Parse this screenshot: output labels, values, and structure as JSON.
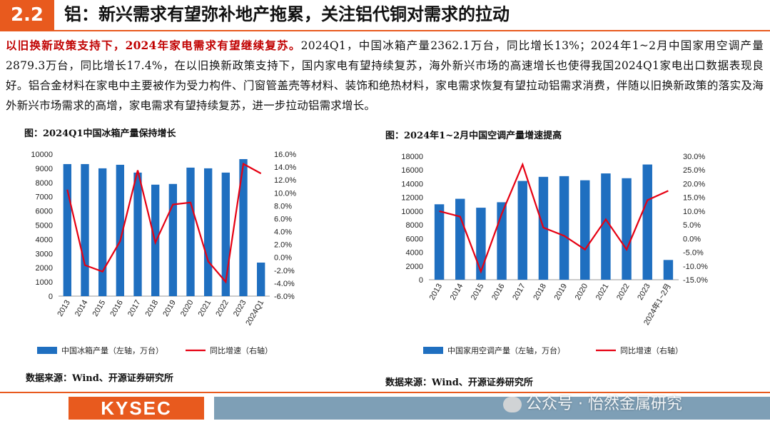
{
  "header": {
    "section": "2.2",
    "title": "铝：新兴需求有望弥补地产拖累，关注铝代铜对需求的拉动"
  },
  "paragraph": {
    "highlight": "以旧换新政策支持下，2024年家电需求有望继续复苏。",
    "body": "2024Q1，中国冰箱产量2362.1万台，同比增长13%；2024年1~2月中国家用空调产量2879.3万台，同比增长17.4%，在以旧换新政策支持下，国内家电有望持续复苏，海外新兴市场的高速增长也使得我国2024Q1家电出口数据表现良好。铝合金材料在家电中主要被作为受力构件、门窗管盖壳等材料、装饰和绝热材料，家电需求恢复有望拉动铝需求消费，伴随以旧换新政策的落实及海外新兴市场需求的高增，家电需求有望持续复苏，进一步拉动铝需求增长。"
  },
  "chart1": {
    "title": "图：2024Q1中国冰箱产量保持增长",
    "source": "数据来源：Wind、开源证券研究所"
  },
  "chart2": {
    "title": "图：2024年1~2月中国空调产量增速提高",
    "source": "数据来源：Wind、开源证券研究所"
  },
  "chart_data": [
    {
      "type": "bar",
      "categories": [
        "2013",
        "2014",
        "2015",
        "2016",
        "2017",
        "2018",
        "2019",
        "2020",
        "2021",
        "2022",
        "2023",
        "2024Q1"
      ],
      "series": [
        {
          "name": "中国冰箱产量（左轴，万台）",
          "kind": "bar",
          "axis": "left",
          "values": [
            9300,
            9300,
            9000,
            9250,
            8700,
            7850,
            7900,
            9050,
            9000,
            8700,
            9650,
            2362
          ]
        },
        {
          "name": "同比增速（右轴）",
          "kind": "line",
          "axis": "right",
          "values": [
            10.5,
            -1.2,
            -2.2,
            2.5,
            13.5,
            2.3,
            8.2,
            8.5,
            -0.6,
            -3.8,
            14.5,
            13.0
          ]
        }
      ],
      "yleft": {
        "min": 0,
        "max": 10000,
        "step": 1000,
        "labels": [
          "0",
          "1000",
          "2000",
          "3000",
          "4000",
          "5000",
          "6000",
          "7000",
          "8000",
          "9000",
          "10000"
        ]
      },
      "yright": {
        "min": -6,
        "max": 16,
        "step": 2,
        "labels": [
          "-6.0%",
          "-4.0%",
          "-2.0%",
          "0.0%",
          "2.0%",
          "4.0%",
          "6.0%",
          "8.0%",
          "10.0%",
          "12.0%",
          "14.0%",
          "16.0%"
        ]
      },
      "colors": {
        "bar": "#1f6fc0",
        "line": "#e60012"
      }
    },
    {
      "type": "bar",
      "categories": [
        "2013",
        "2014",
        "2015",
        "2016",
        "2017",
        "2018",
        "2019",
        "2020",
        "2021",
        "2022",
        "2023",
        "2024年1~2月"
      ],
      "series": [
        {
          "name": "中国家用空调产量（左轴，万台）",
          "kind": "bar",
          "axis": "left",
          "values": [
            11000,
            11800,
            10500,
            11300,
            14400,
            15000,
            15100,
            14500,
            15500,
            14800,
            16800,
            2879
          ]
        },
        {
          "name": "同比增速（右轴）",
          "kind": "line",
          "axis": "right",
          "values": [
            10,
            8,
            -12,
            9,
            27,
            4,
            1,
            -4,
            7,
            -4,
            14,
            17.4
          ]
        }
      ],
      "yleft": {
        "min": 0,
        "max": 18000,
        "step": 2000,
        "labels": [
          "0",
          "2000",
          "4000",
          "6000",
          "8000",
          "10000",
          "12000",
          "14000",
          "16000",
          "18000"
        ]
      },
      "yright": {
        "min": -15,
        "max": 30,
        "step": 5,
        "labels": [
          "-15.0%",
          "-10.0%",
          "-5.0%",
          "0.0%",
          "5.0%",
          "10.0%",
          "15.0%",
          "20.0%",
          "25.0%",
          "30.0%"
        ]
      },
      "colors": {
        "bar": "#1f6fc0",
        "line": "#e60012"
      }
    }
  ],
  "footer": {
    "logo": "KYSEC",
    "watermark": "公众号 · 怡然金属研究"
  }
}
